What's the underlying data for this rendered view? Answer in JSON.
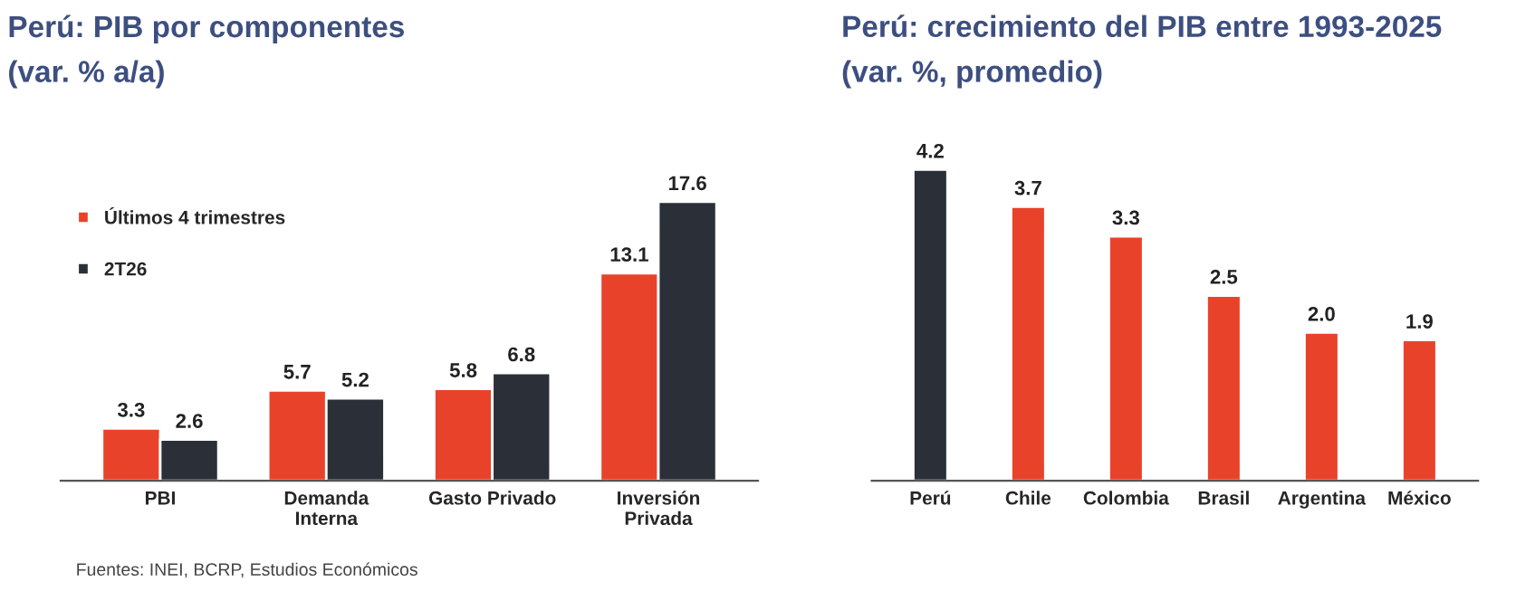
{
  "chart_data": [
    {
      "type": "bar",
      "title": "Perú: PIB por componentes",
      "subtitle": "(var. % a/a)",
      "categories": [
        "PBI",
        "Demanda\nInterna",
        "Gasto Privado",
        "Inversión\nPrivada"
      ],
      "series": [
        {
          "name": "Últimos 4 trimestres",
          "color": "#e8432a",
          "values": [
            3.3,
            5.7,
            5.8,
            13.1
          ]
        },
        {
          "name": "2T26",
          "color": "#2b3038",
          "values": [
            2.6,
            5.2,
            6.8,
            17.6
          ]
        }
      ],
      "data_labels": true,
      "legend": "top left",
      "annotations": [
        "Fuentes: INEI, BCRP, Estudios Económicos"
      ]
    },
    {
      "type": "bar",
      "title": "Perú: crecimiento del PIB entre 1993-2025",
      "subtitle": "(var. %, promedio)",
      "categories": [
        "Perú",
        "Chile",
        "Colombia",
        "Brasil",
        "Argentina",
        "México"
      ],
      "values": [
        4.2,
        3.7,
        3.3,
        2.5,
        2.0,
        1.9
      ],
      "colors": [
        "#2b3038",
        "#e8432a",
        "#e8432a",
        "#e8432a",
        "#e8432a",
        "#e8432a"
      ],
      "value_labels": [
        "4.2",
        "3.7",
        "3.3",
        "2.5",
        "2.0",
        "1.9"
      ],
      "legend": false
    }
  ]
}
